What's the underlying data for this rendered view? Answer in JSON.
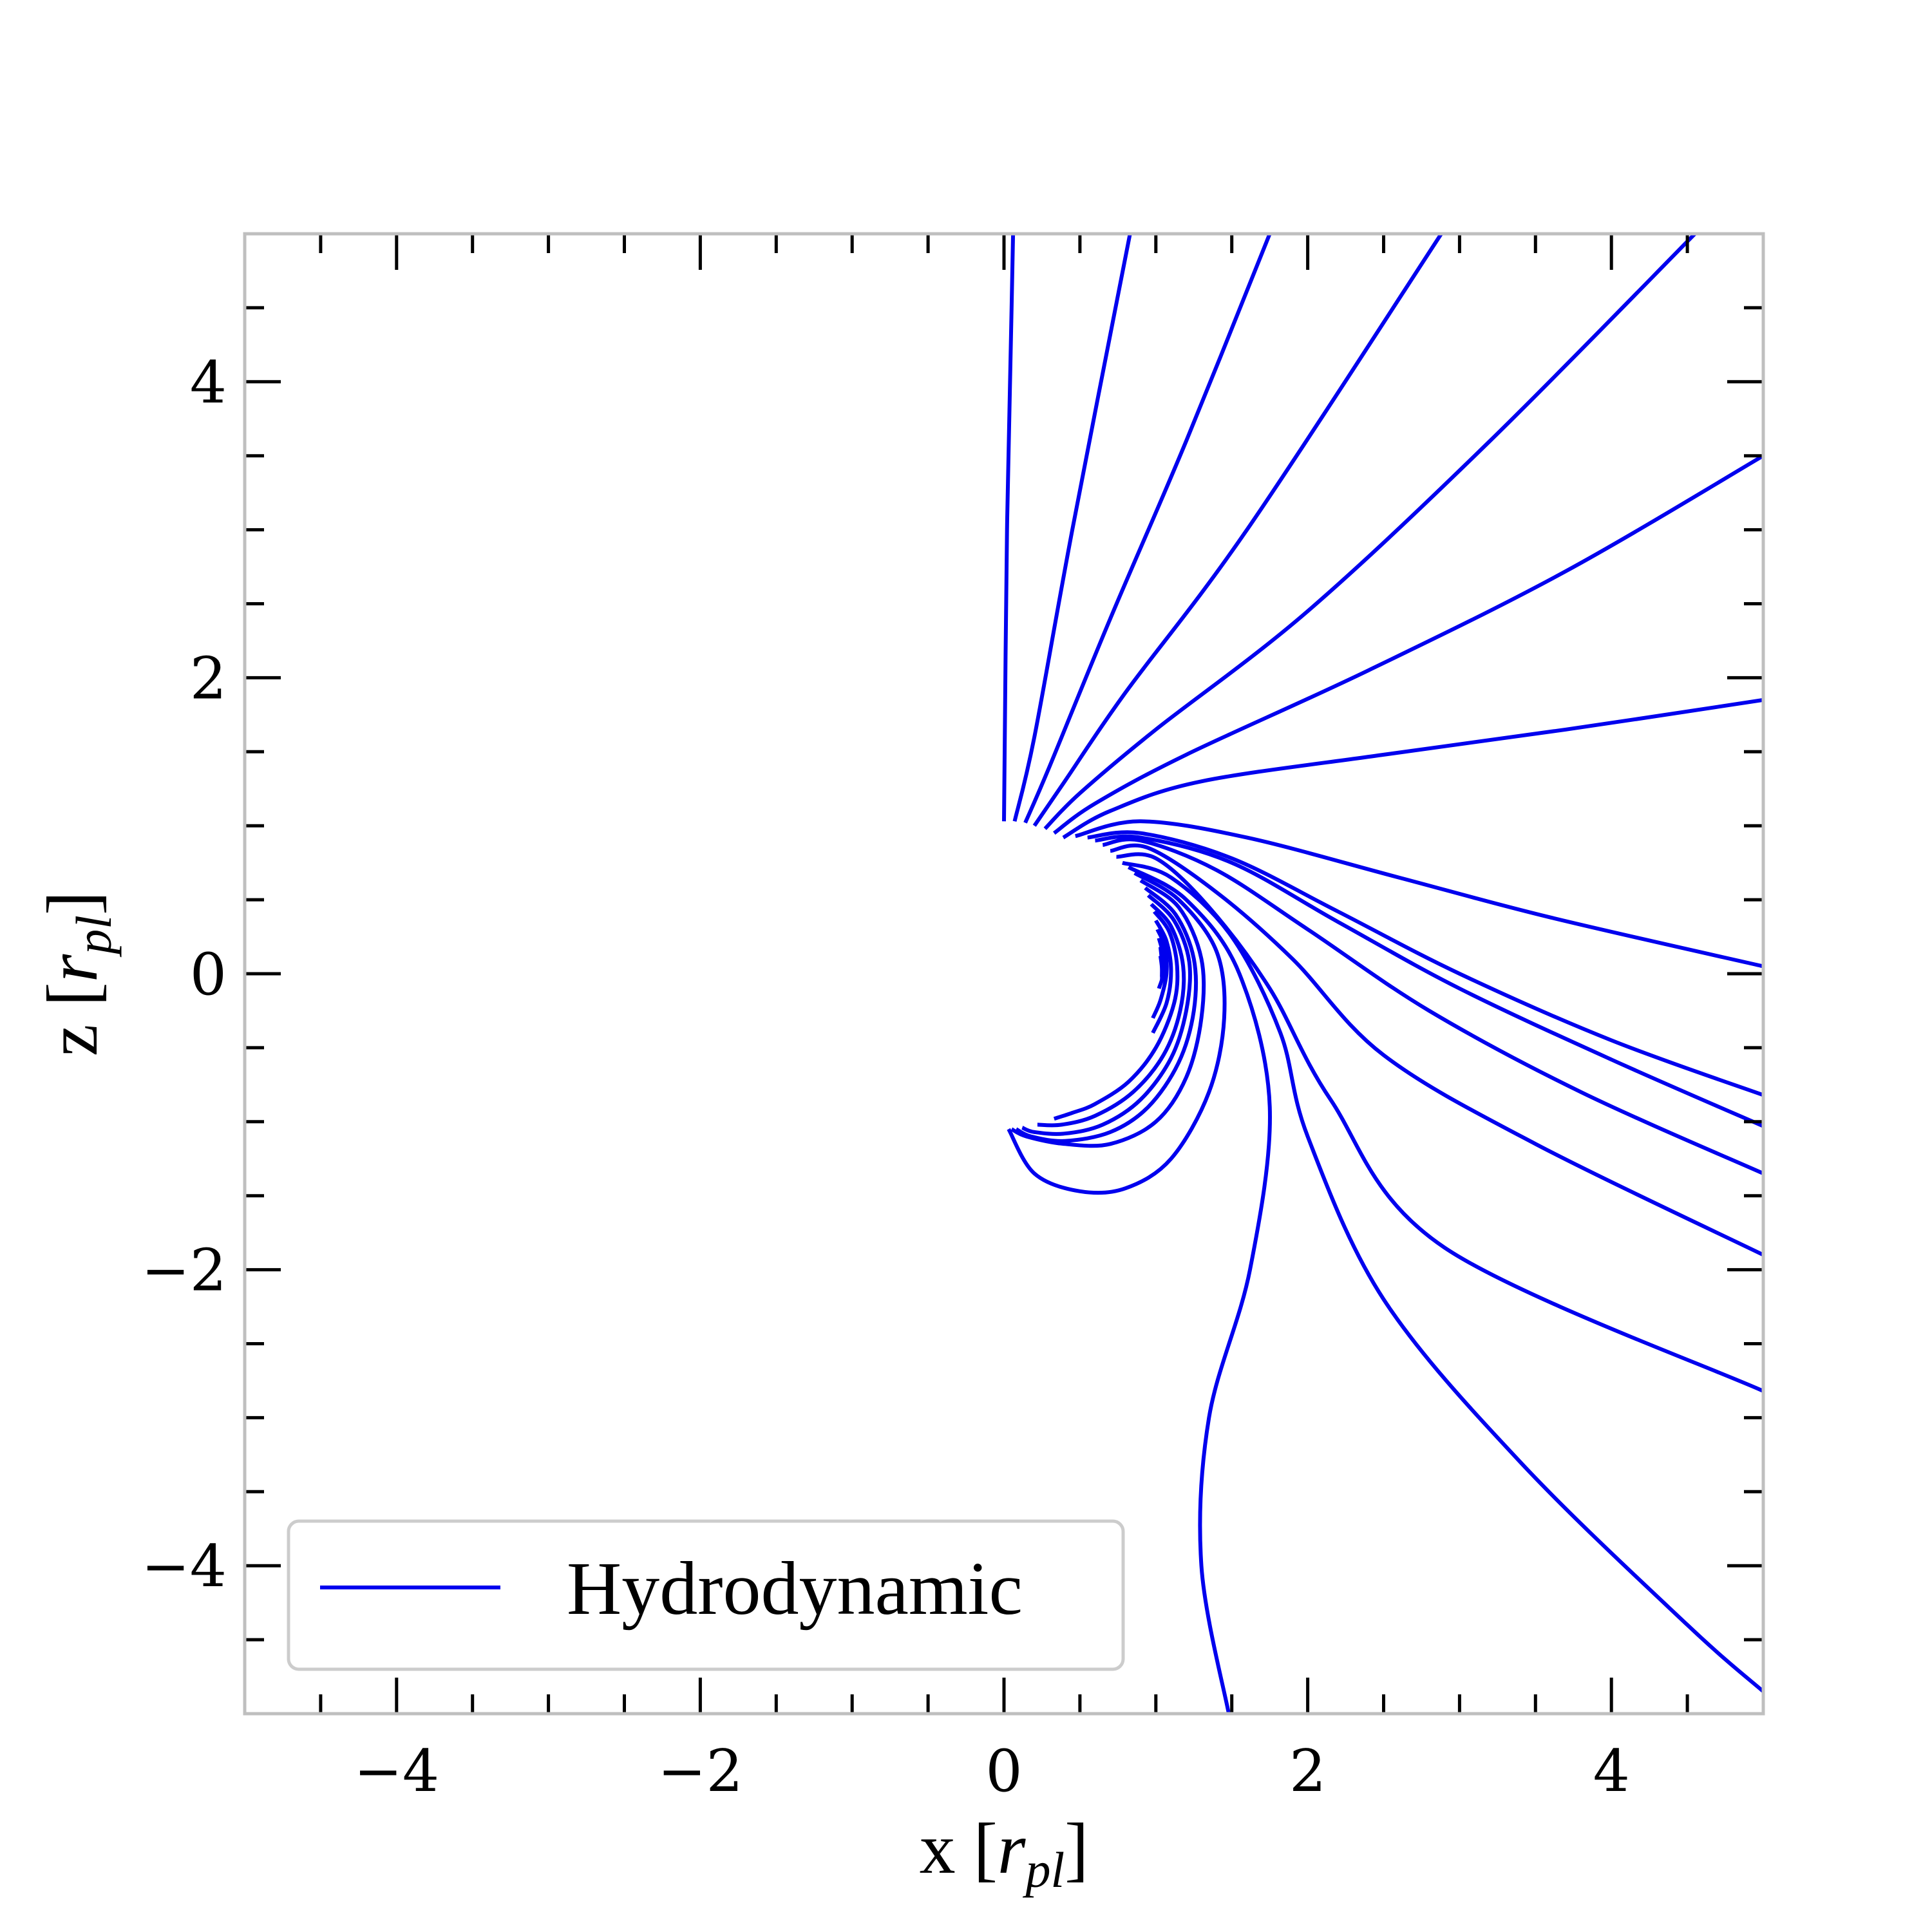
{
  "chart_data": {
    "type": "line",
    "title": "",
    "xlabel": "x [r_pl]",
    "ylabel": "z [r_pl]",
    "xlabel_parts": {
      "prefix": "x",
      "sym": "r",
      "sub": "pl"
    },
    "ylabel_parts": {
      "prefix": "z",
      "sym": "r",
      "sub": "pl"
    },
    "xlim": [
      -5,
      5
    ],
    "ylim": [
      -5,
      5
    ],
    "xticks": [
      -4,
      -2,
      0,
      2,
      4
    ],
    "yticks": [
      -4,
      -2,
      0,
      2,
      4
    ],
    "xtick_labels": [
      "−4",
      "−2",
      "0",
      "2",
      "4"
    ],
    "ytick_labels": [
      "−4",
      "−2",
      "0",
      "2",
      "4"
    ],
    "minor_tick_step": 0.5,
    "grid": false,
    "legend": {
      "position": "lower-left",
      "entries": [
        "Hydrodynamic"
      ]
    },
    "line_color": "#0000ee",
    "series": [
      {
        "name": "Hydrodynamic",
        "x": [
          0.0,
          0.02,
          0.05,
          0.06
        ],
        "y": [
          1.03,
          3.0,
          4.5,
          5.0
        ]
      },
      {
        "x": [
          0.07,
          0.2,
          0.45,
          0.83
        ],
        "y": [
          1.03,
          1.6,
          3.0,
          5.0
        ]
      },
      {
        "x": [
          0.14,
          0.3,
          0.7,
          1.2,
          1.75
        ],
        "y": [
          1.02,
          1.4,
          2.4,
          3.6,
          5.0
        ]
      },
      {
        "x": [
          0.2,
          0.4,
          0.8,
          1.6,
          2.88
        ],
        "y": [
          1.0,
          1.3,
          1.9,
          3.0,
          5.0
        ]
      },
      {
        "x": [
          0.27,
          0.5,
          1.0,
          2.0,
          3.2,
          4.55
        ],
        "y": [
          0.98,
          1.22,
          1.65,
          2.45,
          3.6,
          5.0
        ]
      },
      {
        "x": [
          0.33,
          0.6,
          1.2,
          2.4,
          3.7,
          5.0
        ],
        "y": [
          0.95,
          1.15,
          1.48,
          2.05,
          2.72,
          3.5
        ]
      },
      {
        "x": [
          0.39,
          0.7,
          1.3,
          2.5,
          3.7,
          5.0
        ],
        "y": [
          0.92,
          1.1,
          1.3,
          1.48,
          1.65,
          1.85
        ]
      },
      {
        "x": [
          0.47,
          0.9,
          1.6,
          2.6,
          3.6,
          5.0
        ],
        "y": [
          0.93,
          1.03,
          0.92,
          0.65,
          0.38,
          0.05
        ]
      },
      {
        "x": [
          0.55,
          0.9,
          1.5,
          2.2,
          3.0,
          4.0,
          5.0
        ],
        "y": [
          0.92,
          0.95,
          0.78,
          0.42,
          0.0,
          -0.45,
          -0.82
        ]
      },
      {
        "x": [
          0.6,
          0.9,
          1.5,
          2.2,
          3.0,
          4.0,
          5.0
        ],
        "y": [
          0.9,
          0.92,
          0.75,
          0.35,
          -0.1,
          -0.58,
          -1.03
        ]
      },
      {
        "x": [
          0.65,
          0.9,
          1.4,
          2.0,
          2.8,
          3.8,
          5.0
        ],
        "y": [
          0.87,
          0.9,
          0.7,
          0.3,
          -0.25,
          -0.8,
          -1.35
        ]
      },
      {
        "x": [
          0.7,
          0.95,
          1.4,
          1.9,
          2.5,
          3.5,
          5.0
        ],
        "y": [
          0.83,
          0.85,
          0.55,
          0.1,
          -0.55,
          -1.15,
          -1.9
        ]
      },
      {
        "x": [
          0.74,
          1.0,
          1.35,
          1.75,
          2.15,
          2.9,
          5.0
        ],
        "y": [
          0.79,
          0.78,
          0.45,
          -0.1,
          -0.85,
          -1.85,
          -2.82
        ]
      },
      {
        "x": [
          0.78,
          1.1,
          1.5,
          1.82,
          2.0,
          2.5,
          3.4,
          4.5,
          5.0
        ],
        "y": [
          0.75,
          0.65,
          0.25,
          -0.4,
          -1.1,
          -2.2,
          -3.3,
          -4.4,
          -4.85
        ]
      },
      {
        "x": [
          0.82,
          1.2,
          1.55,
          1.75,
          1.62,
          1.35,
          1.3,
          1.48
        ],
        "y": [
          0.72,
          0.5,
          0.0,
          -0.9,
          -2.0,
          -3.0,
          -4.0,
          -5.0
        ]
      },
      {
        "x": [
          0.86,
          1.15,
          1.4,
          1.45,
          1.35,
          1.1,
          0.8,
          0.5,
          0.2,
          0.03
        ],
        "y": [
          0.68,
          0.5,
          0.15,
          -0.3,
          -0.8,
          -1.25,
          -1.45,
          -1.47,
          -1.35,
          -1.05
        ]
      },
      {
        "x": [
          0.9,
          1.15,
          1.3,
          1.3,
          1.2,
          1.0,
          0.7,
          0.4,
          0.15,
          0.05
        ],
        "y": [
          0.63,
          0.45,
          0.1,
          -0.3,
          -0.7,
          -1.0,
          -1.15,
          -1.15,
          -1.1,
          -1.05
        ]
      },
      {
        "x": [
          0.93,
          1.13,
          1.25,
          1.25,
          1.15,
          0.95,
          0.7,
          0.4,
          0.18,
          0.08
        ],
        "y": [
          0.58,
          0.4,
          0.1,
          -0.25,
          -0.6,
          -0.9,
          -1.07,
          -1.13,
          -1.1,
          -1.05
        ]
      },
      {
        "x": [
          0.95,
          1.12,
          1.22,
          1.2,
          1.1,
          0.9,
          0.65,
          0.4,
          0.2,
          0.12
        ],
        "y": [
          0.53,
          0.36,
          0.08,
          -0.25,
          -0.57,
          -0.85,
          -1.02,
          -1.08,
          -1.07,
          -1.04
        ]
      },
      {
        "x": [
          0.97,
          1.1,
          1.18,
          1.16,
          1.05,
          0.85,
          0.6,
          0.38,
          0.22
        ],
        "y": [
          0.47,
          0.32,
          0.05,
          -0.25,
          -0.55,
          -0.8,
          -0.96,
          -1.02,
          -1.02
        ]
      },
      {
        "x": [
          0.99,
          1.09,
          1.14,
          1.12,
          1.0,
          0.82,
          0.6,
          0.45,
          0.33
        ],
        "y": [
          0.42,
          0.28,
          0.05,
          -0.2,
          -0.5,
          -0.73,
          -0.88,
          -0.94,
          -0.98
        ]
      },
      {
        "x": [
          1.0,
          1.07,
          1.1,
          1.07,
          0.98
        ],
        "y": [
          0.36,
          0.22,
          0.02,
          -0.2,
          -0.4
        ]
      },
      {
        "x": [
          1.01,
          1.06,
          1.07,
          1.03,
          0.98
        ],
        "y": [
          0.3,
          0.18,
          0.0,
          -0.18,
          -0.3
        ]
      },
      {
        "x": [
          1.02,
          1.05,
          1.05,
          1.02
        ],
        "y": [
          0.24,
          0.12,
          0.0,
          -0.1
        ]
      },
      {
        "x": [
          1.03,
          1.04,
          1.04
        ],
        "y": [
          0.18,
          0.08,
          -0.02
        ]
      },
      {
        "x": [
          1.03,
          1.04,
          1.04
        ],
        "y": [
          0.12,
          0.04,
          -0.05
        ]
      },
      {
        "x": [
          1.04,
          1.045
        ],
        "y": [
          0.06,
          -0.02
        ]
      }
    ]
  }
}
